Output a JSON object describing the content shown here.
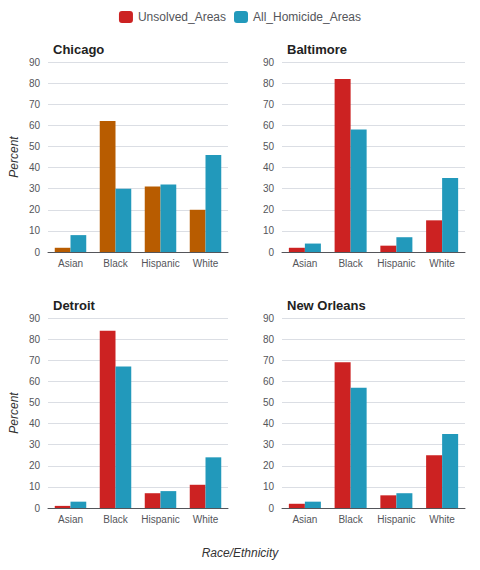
{
  "chart_data": [
    {
      "type": "bar",
      "title": "Chicago",
      "categories": [
        "Asian",
        "Black",
        "Hispanic",
        "White"
      ],
      "series": [
        {
          "name": "Unsolved_Areas",
          "color": "#b85c00",
          "values": [
            2,
            62,
            31,
            20
          ]
        },
        {
          "name": "All_Homicide_Areas",
          "color": "#2299bb",
          "values": [
            8,
            30,
            32,
            46
          ]
        }
      ],
      "ylabel": "Percent",
      "ylim": [
        0,
        90
      ],
      "yticks": [
        0,
        10,
        20,
        30,
        40,
        50,
        60,
        70,
        80,
        90
      ],
      "grid": true
    },
    {
      "type": "bar",
      "title": "Baltimore",
      "categories": [
        "Asian",
        "Black",
        "Hispanic",
        "White"
      ],
      "series": [
        {
          "name": "Unsolved_Areas",
          "color": "#cc2222",
          "values": [
            2,
            82,
            3,
            15
          ]
        },
        {
          "name": "All_Homicide_Areas",
          "color": "#2299bb",
          "values": [
            4,
            58,
            7,
            35
          ]
        }
      ],
      "ylim": [
        0,
        90
      ],
      "yticks": [
        0,
        10,
        20,
        30,
        40,
        50,
        60,
        70,
        80,
        90
      ],
      "grid": true,
      "legend": "top"
    },
    {
      "type": "bar",
      "title": "Detroit",
      "categories": [
        "Asian",
        "Black",
        "Hispanic",
        "White"
      ],
      "series": [
        {
          "name": "Unsolved_Areas",
          "color": "#cc2222",
          "values": [
            1,
            84,
            7,
            11
          ]
        },
        {
          "name": "All_Homicide_Areas",
          "color": "#2299bb",
          "values": [
            3,
            67,
            8,
            24
          ]
        }
      ],
      "ylabel": "Percent",
      "xlabel": "Race/Ethnicity",
      "ylim": [
        0,
        90
      ],
      "yticks": [
        0,
        10,
        20,
        30,
        40,
        50,
        60,
        70,
        80,
        90
      ],
      "grid": true
    },
    {
      "type": "bar",
      "title": "New Orleans",
      "categories": [
        "Asian",
        "Black",
        "Hispanic",
        "White"
      ],
      "series": [
        {
          "name": "Unsolved_Areas",
          "color": "#cc2222",
          "values": [
            2,
            69,
            6,
            25
          ]
        },
        {
          "name": "All_Homicide_Areas",
          "color": "#2299bb",
          "values": [
            3,
            57,
            7,
            35
          ]
        }
      ],
      "ylim": [
        0,
        90
      ],
      "yticks": [
        0,
        10,
        20,
        30,
        40,
        50,
        60,
        70,
        80,
        90
      ],
      "grid": true
    }
  ]
}
